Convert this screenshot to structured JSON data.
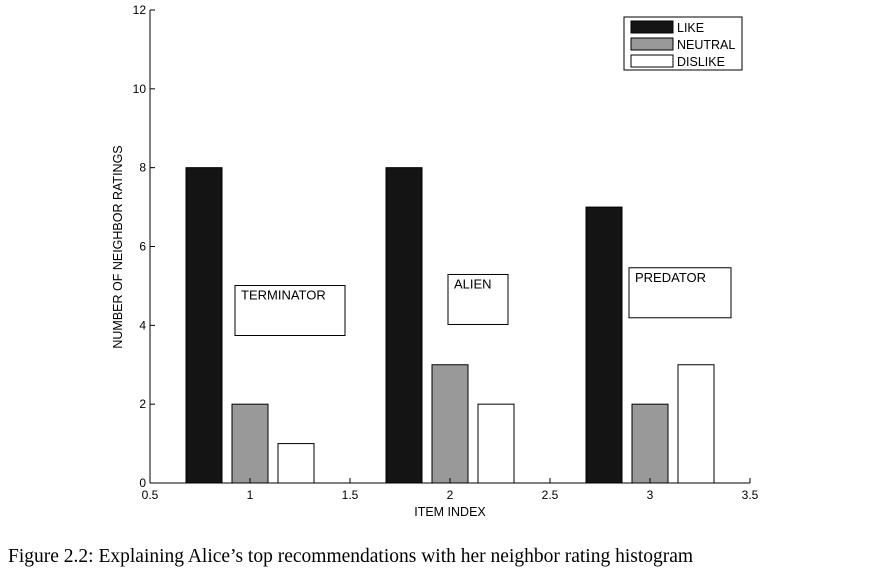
{
  "chart_data": {
    "type": "bar",
    "xlabel": "ITEM INDEX",
    "ylabel": "NUMBER OF NEIGHBOR RATINGS",
    "xlim": [
      0.5,
      3.5
    ],
    "ylim": [
      0,
      12
    ],
    "xticks": [
      0.5,
      1,
      1.5,
      2,
      2.5,
      3,
      3.5
    ],
    "xtick_labels": [
      "0.5",
      "1",
      "1.5",
      "2",
      "2.5",
      "3",
      "3.5"
    ],
    "yticks": [
      0,
      2,
      4,
      6,
      8,
      10,
      12
    ],
    "ytick_labels": [
      "0",
      "2",
      "4",
      "6",
      "8",
      "10",
      "12"
    ],
    "categories": [
      1,
      2,
      3
    ],
    "series": [
      {
        "name": "LIKE",
        "values": [
          8,
          8,
          7
        ],
        "color": "#141414"
      },
      {
        "name": "NEUTRAL",
        "values": [
          2,
          3,
          2
        ],
        "color": "#999999"
      },
      {
        "name": "DISLIKE",
        "values": [
          1,
          2,
          3
        ],
        "color": "#ffffff"
      }
    ],
    "annotations": [
      {
        "text": "TERMINATOR",
        "x": 1.2,
        "y": 4.3
      },
      {
        "text": "ALIEN",
        "x": 2.14,
        "y": 4.58
      },
      {
        "text": "PREDATOR",
        "x": 3.15,
        "y": 4.75
      }
    ],
    "legend_position": "top-right",
    "grid": false
  },
  "caption": "Figure 2.2: Explaining Alice’s top recommendations with her neighbor rating histogram"
}
